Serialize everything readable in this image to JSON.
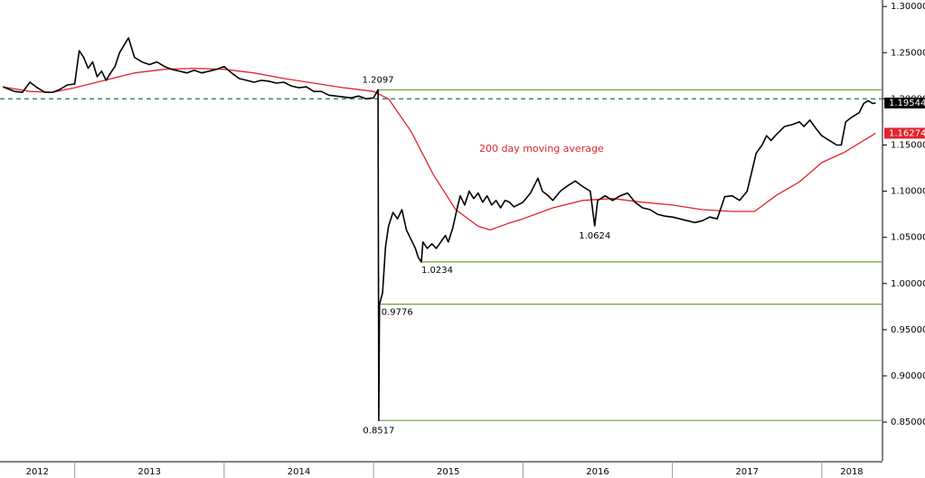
{
  "chart_data": {
    "type": "line",
    "xlim": [
      2012.5,
      2018.4
    ],
    "xticks": [
      2012,
      2013,
      2014,
      2015,
      2016,
      2017,
      2018
    ],
    "ylim": [
      0.808,
      1.307
    ],
    "yticks": [
      {
        "value": 0.85,
        "label": "0.85000"
      },
      {
        "value": 0.9,
        "label": "0.90000"
      },
      {
        "value": 0.95,
        "label": "0.95000"
      },
      {
        "value": 1.0,
        "label": "1.00000"
      },
      {
        "value": 1.05,
        "label": "1.05000"
      },
      {
        "value": 1.1,
        "label": "1.10000"
      },
      {
        "value": 1.15,
        "label": "1.15000"
      },
      {
        "value": 1.2,
        "label": "1.20000"
      },
      {
        "value": 1.25,
        "label": "1.25000"
      },
      {
        "value": 1.3,
        "label": "1.30000"
      }
    ],
    "reference_line": {
      "value": 1.2,
      "color": "#2a8c78"
    },
    "level_color": "#6f9f3c",
    "series": [
      {
        "color": "#000000",
        "last_label": "1.19544",
        "x": [
          2012.52,
          2012.55,
          2012.6,
          2012.65,
          2012.7,
          2012.75,
          2012.8,
          2012.85,
          2012.9,
          2012.95,
          2013.0,
          2013.03,
          2013.06,
          2013.09,
          2013.12,
          2013.15,
          2013.18,
          2013.21,
          2013.24,
          2013.27,
          2013.3,
          2013.33,
          2013.36,
          2013.4,
          2013.45,
          2013.5,
          2013.55,
          2013.6,
          2013.65,
          2013.7,
          2013.75,
          2013.8,
          2013.85,
          2013.9,
          2013.95,
          2014.0,
          2014.05,
          2014.1,
          2014.15,
          2014.2,
          2014.25,
          2014.3,
          2014.35,
          2014.4,
          2014.45,
          2014.5,
          2014.55,
          2014.6,
          2014.65,
          2014.7,
          2014.75,
          2014.8,
          2014.85,
          2014.9,
          2014.95,
          2015.0,
          2015.03,
          2015.035,
          2015.04,
          2015.06,
          2015.08,
          2015.1,
          2015.13,
          2015.16,
          2015.19,
          2015.22,
          2015.25,
          2015.28,
          2015.3,
          2015.32,
          2015.33,
          2015.36,
          2015.39,
          2015.42,
          2015.45,
          2015.48,
          2015.5,
          2015.53,
          2015.56,
          2015.58,
          2015.61,
          2015.64,
          2015.67,
          2015.7,
          2015.73,
          2015.76,
          2015.79,
          2015.82,
          2015.85,
          2015.88,
          2015.91,
          2015.94,
          2016.0,
          2016.05,
          2016.1,
          2016.13,
          2016.17,
          2016.2,
          2016.25,
          2016.3,
          2016.35,
          2016.4,
          2016.45,
          2016.48,
          2016.5,
          2016.55,
          2016.6,
          2016.65,
          2016.7,
          2016.75,
          2016.8,
          2016.85,
          2016.9,
          2016.95,
          2017.0,
          2017.05,
          2017.1,
          2017.15,
          2017.2,
          2017.25,
          2017.3,
          2017.35,
          2017.4,
          2017.45,
          2017.5,
          2017.53,
          2017.56,
          2017.6,
          2017.63,
          2017.66,
          2017.7,
          2017.75,
          2017.8,
          2017.85,
          2017.88,
          2017.92,
          2017.96,
          2018.0,
          2018.05,
          2018.1,
          2018.13,
          2018.16,
          2018.2,
          2018.25,
          2018.28,
          2018.31,
          2018.34,
          2018.36
        ],
        "values": [
          1.213,
          1.211,
          1.208,
          1.207,
          1.218,
          1.212,
          1.207,
          1.207,
          1.21,
          1.215,
          1.216,
          1.252,
          1.245,
          1.233,
          1.24,
          1.224,
          1.23,
          1.22,
          1.228,
          1.235,
          1.25,
          1.258,
          1.266,
          1.245,
          1.24,
          1.237,
          1.24,
          1.235,
          1.232,
          1.23,
          1.228,
          1.231,
          1.228,
          1.23,
          1.232,
          1.235,
          1.228,
          1.222,
          1.22,
          1.218,
          1.22,
          1.219,
          1.217,
          1.218,
          1.214,
          1.212,
          1.213,
          1.208,
          1.208,
          1.204,
          1.203,
          1.202,
          1.201,
          1.203,
          1.2,
          1.201,
          1.2097,
          0.8517,
          0.9776,
          0.99,
          1.04,
          1.062,
          1.077,
          1.07,
          1.08,
          1.058,
          1.048,
          1.038,
          1.028,
          1.0234,
          1.045,
          1.038,
          1.043,
          1.038,
          1.045,
          1.052,
          1.045,
          1.06,
          1.082,
          1.095,
          1.085,
          1.1,
          1.092,
          1.098,
          1.088,
          1.095,
          1.085,
          1.09,
          1.082,
          1.09,
          1.088,
          1.083,
          1.088,
          1.098,
          1.114,
          1.1,
          1.095,
          1.09,
          1.1,
          1.106,
          1.111,
          1.105,
          1.1,
          1.0624,
          1.09,
          1.095,
          1.09,
          1.095,
          1.098,
          1.088,
          1.082,
          1.08,
          1.075,
          1.073,
          1.072,
          1.07,
          1.068,
          1.066,
          1.068,
          1.072,
          1.07,
          1.094,
          1.095,
          1.09,
          1.1,
          1.12,
          1.141,
          1.15,
          1.16,
          1.155,
          1.162,
          1.17,
          1.172,
          1.175,
          1.17,
          1.177,
          1.168,
          1.16,
          1.155,
          1.15,
          1.15,
          1.175,
          1.18,
          1.185,
          1.195,
          1.198,
          1.195,
          1.19544
        ]
      },
      {
        "name": "200 day moving average",
        "color": "#e0242a",
        "last_label": "1.16274",
        "x": [
          2012.52,
          2012.7,
          2012.85,
          2013.0,
          2013.2,
          2013.4,
          2013.6,
          2013.8,
          2014.0,
          2014.2,
          2014.4,
          2014.6,
          2014.8,
          2015.0,
          2015.1,
          2015.25,
          2015.4,
          2015.55,
          2015.7,
          2015.78,
          2015.9,
          2016.0,
          2016.2,
          2016.4,
          2016.6,
          2016.8,
          2017.0,
          2017.2,
          2017.4,
          2017.55,
          2017.7,
          2017.85,
          2018.0,
          2018.15,
          2018.36
        ],
        "values": [
          1.213,
          1.208,
          1.207,
          1.212,
          1.22,
          1.228,
          1.232,
          1.233,
          1.232,
          1.228,
          1.222,
          1.217,
          1.212,
          1.208,
          1.2,
          1.165,
          1.118,
          1.08,
          1.062,
          1.058,
          1.065,
          1.07,
          1.082,
          1.09,
          1.092,
          1.088,
          1.085,
          1.08,
          1.078,
          1.078,
          1.096,
          1.11,
          1.131,
          1.142,
          1.16274
        ]
      }
    ],
    "annotations": [
      {
        "label": "1.2097",
        "x": 2015.03,
        "value": 1.2097,
        "anchor": "above",
        "level_line": true
      },
      {
        "label": "1.0234",
        "x": 2015.32,
        "value": 1.0234,
        "anchor": "below",
        "level_line": true
      },
      {
        "label": "0.9776",
        "x": 2015.04,
        "value": 0.9776,
        "anchor": "below-right",
        "level_line": true
      },
      {
        "label": "0.8517",
        "x": 2015.035,
        "value": 0.8517,
        "anchor": "below",
        "level_line": true
      },
      {
        "label": "1.0624",
        "x": 2016.48,
        "value": 1.0624,
        "anchor": "below",
        "level_line": false
      }
    ]
  }
}
